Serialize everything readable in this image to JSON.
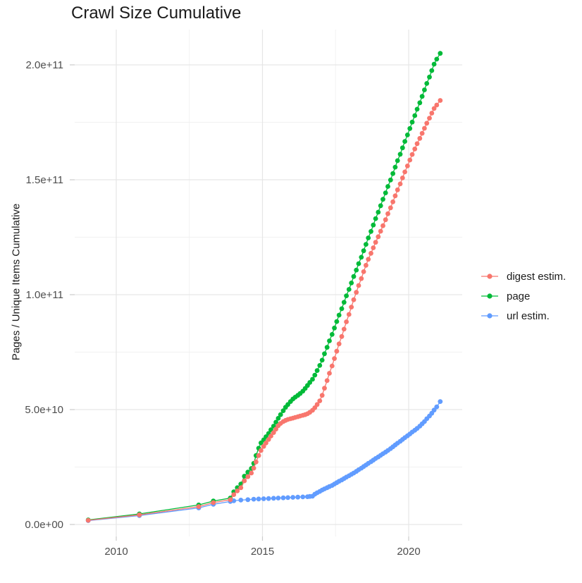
{
  "title": "Crawl Size Cumulative",
  "chart_data": {
    "type": "line",
    "title": "Crawl Size Cumulative",
    "xlabel": "",
    "ylabel": "Pages / Unique Items Cumulative",
    "legend_position": "right",
    "grid": true,
    "background": "#ffffff",
    "grid_major_color": "#e6e6e6",
    "grid_minor_color": "#f1f1f1",
    "tick_color": "#cccccc",
    "tick_label_color": "#4d4d4d",
    "x_ticks": {
      "labels": [
        "2010",
        "2015",
        "2020"
      ],
      "years": [
        2010,
        2015,
        2020
      ]
    },
    "x_minor_years": [
      2012.5,
      2017.5
    ],
    "y_ticks": {
      "labels": [
        "0.0e+00",
        "5.0e+10",
        "1.0e+11",
        "1.5e+11",
        "2.0e+11"
      ],
      "values_e10": [
        0,
        5,
        10,
        15,
        20
      ]
    },
    "y_minor_e10": [
      2.5,
      7.5,
      12.5,
      17.5
    ],
    "xlim": [
      2008.58,
      2021.83
    ],
    "ylim_e10": [
      -0.55,
      21.5
    ],
    "value_unit": "points are [year, value] with value in units of 1e10 pages/items",
    "draw_order": [
      1,
      2,
      0
    ],
    "series": [
      {
        "name": "digest estim.",
        "color": "#F8766D",
        "points": [
          [
            2009.04,
            0.18
          ],
          [
            2010.79,
            0.42
          ],
          [
            2012.82,
            0.78
          ],
          [
            2013.32,
            0.95
          ],
          [
            2013.9,
            1.08
          ],
          [
            2014.02,
            1.3
          ],
          [
            2014.14,
            1.46
          ],
          [
            2014.26,
            1.6
          ],
          [
            2014.38,
            1.9
          ],
          [
            2014.5,
            2.08
          ],
          [
            2014.62,
            2.24
          ],
          [
            2014.7,
            2.45
          ],
          [
            2014.78,
            2.72
          ],
          [
            2014.87,
            3.0
          ],
          [
            2014.95,
            3.22
          ],
          [
            2015.04,
            3.4
          ],
          [
            2015.12,
            3.55
          ],
          [
            2015.21,
            3.7
          ],
          [
            2015.29,
            3.85
          ],
          [
            2015.38,
            4.0
          ],
          [
            2015.46,
            4.15
          ],
          [
            2015.54,
            4.3
          ],
          [
            2015.62,
            4.4
          ],
          [
            2015.71,
            4.48
          ],
          [
            2015.79,
            4.53
          ],
          [
            2015.87,
            4.57
          ],
          [
            2015.96,
            4.6
          ],
          [
            2016.04,
            4.63
          ],
          [
            2016.12,
            4.66
          ],
          [
            2016.21,
            4.69
          ],
          [
            2016.29,
            4.72
          ],
          [
            2016.38,
            4.75
          ],
          [
            2016.46,
            4.78
          ],
          [
            2016.54,
            4.82
          ],
          [
            2016.62,
            4.88
          ],
          [
            2016.71,
            4.97
          ],
          [
            2016.79,
            5.08
          ],
          [
            2016.87,
            5.22
          ],
          [
            2016.96,
            5.38
          ],
          [
            2017.04,
            5.62
          ],
          [
            2017.12,
            5.93
          ],
          [
            2017.21,
            6.26
          ],
          [
            2017.29,
            6.58
          ],
          [
            2017.38,
            6.9
          ],
          [
            2017.46,
            7.22
          ],
          [
            2017.54,
            7.54
          ],
          [
            2017.62,
            7.86
          ],
          [
            2017.71,
            8.18
          ],
          [
            2017.79,
            8.5
          ],
          [
            2017.87,
            8.82
          ],
          [
            2017.96,
            9.14
          ],
          [
            2018.04,
            9.46
          ],
          [
            2018.12,
            9.78
          ],
          [
            2018.21,
            10.1
          ],
          [
            2018.29,
            10.4
          ],
          [
            2018.38,
            10.7
          ],
          [
            2018.46,
            11.0
          ],
          [
            2018.54,
            11.28
          ],
          [
            2018.62,
            11.54
          ],
          [
            2018.71,
            11.8
          ],
          [
            2018.79,
            12.04
          ],
          [
            2018.87,
            12.28
          ],
          [
            2018.96,
            12.52
          ],
          [
            2019.04,
            12.76
          ],
          [
            2019.12,
            13.0
          ],
          [
            2019.21,
            13.26
          ],
          [
            2019.29,
            13.52
          ],
          [
            2019.38,
            13.78
          ],
          [
            2019.46,
            14.04
          ],
          [
            2019.54,
            14.3
          ],
          [
            2019.62,
            14.56
          ],
          [
            2019.71,
            14.82
          ],
          [
            2019.79,
            15.08
          ],
          [
            2019.87,
            15.34
          ],
          [
            2019.96,
            15.6
          ],
          [
            2020.04,
            15.86
          ],
          [
            2020.12,
            16.1
          ],
          [
            2020.21,
            16.34
          ],
          [
            2020.29,
            16.57
          ],
          [
            2020.38,
            16.8
          ],
          [
            2020.46,
            17.02
          ],
          [
            2020.54,
            17.24
          ],
          [
            2020.62,
            17.46
          ],
          [
            2020.71,
            17.68
          ],
          [
            2020.79,
            17.9
          ],
          [
            2020.87,
            18.1
          ],
          [
            2020.96,
            18.25
          ],
          [
            2021.08,
            18.45
          ]
        ]
      },
      {
        "name": "page",
        "color": "#00BA38",
        "points": [
          [
            2009.04,
            0.2
          ],
          [
            2010.79,
            0.46
          ],
          [
            2012.82,
            0.85
          ],
          [
            2013.32,
            1.02
          ],
          [
            2013.9,
            1.15
          ],
          [
            2014.02,
            1.42
          ],
          [
            2014.14,
            1.6
          ],
          [
            2014.26,
            1.76
          ],
          [
            2014.38,
            2.1
          ],
          [
            2014.5,
            2.28
          ],
          [
            2014.62,
            2.44
          ],
          [
            2014.7,
            2.66
          ],
          [
            2014.78,
            3.0
          ],
          [
            2014.87,
            3.32
          ],
          [
            2014.95,
            3.55
          ],
          [
            2015.04,
            3.68
          ],
          [
            2015.12,
            3.82
          ],
          [
            2015.21,
            3.96
          ],
          [
            2015.29,
            4.12
          ],
          [
            2015.38,
            4.28
          ],
          [
            2015.46,
            4.45
          ],
          [
            2015.54,
            4.62
          ],
          [
            2015.62,
            4.78
          ],
          [
            2015.71,
            4.95
          ],
          [
            2015.79,
            5.1
          ],
          [
            2015.87,
            5.22
          ],
          [
            2015.96,
            5.35
          ],
          [
            2016.04,
            5.46
          ],
          [
            2016.12,
            5.54
          ],
          [
            2016.21,
            5.62
          ],
          [
            2016.29,
            5.7
          ],
          [
            2016.38,
            5.8
          ],
          [
            2016.46,
            5.92
          ],
          [
            2016.54,
            6.05
          ],
          [
            2016.62,
            6.18
          ],
          [
            2016.71,
            6.32
          ],
          [
            2016.79,
            6.5
          ],
          [
            2016.87,
            6.7
          ],
          [
            2016.96,
            6.92
          ],
          [
            2017.04,
            7.15
          ],
          [
            2017.12,
            7.43
          ],
          [
            2017.21,
            7.71
          ],
          [
            2017.29,
            7.99
          ],
          [
            2017.38,
            8.27
          ],
          [
            2017.46,
            8.55
          ],
          [
            2017.54,
            8.83
          ],
          [
            2017.62,
            9.11
          ],
          [
            2017.71,
            9.39
          ],
          [
            2017.79,
            9.67
          ],
          [
            2017.87,
            9.95
          ],
          [
            2017.96,
            10.23
          ],
          [
            2018.04,
            10.51
          ],
          [
            2018.12,
            10.79
          ],
          [
            2018.21,
            11.07
          ],
          [
            2018.29,
            11.35
          ],
          [
            2018.38,
            11.63
          ],
          [
            2018.46,
            11.91
          ],
          [
            2018.54,
            12.19
          ],
          [
            2018.62,
            12.47
          ],
          [
            2018.71,
            12.75
          ],
          [
            2018.79,
            13.03
          ],
          [
            2018.87,
            13.31
          ],
          [
            2018.96,
            13.59
          ],
          [
            2019.04,
            13.87
          ],
          [
            2019.12,
            14.15
          ],
          [
            2019.21,
            14.43
          ],
          [
            2019.29,
            14.71
          ],
          [
            2019.38,
            14.99
          ],
          [
            2019.46,
            15.27
          ],
          [
            2019.54,
            15.55
          ],
          [
            2019.62,
            15.83
          ],
          [
            2019.71,
            16.11
          ],
          [
            2019.79,
            16.39
          ],
          [
            2019.87,
            16.67
          ],
          [
            2019.96,
            16.95
          ],
          [
            2020.04,
            17.23
          ],
          [
            2020.12,
            17.51
          ],
          [
            2020.21,
            17.79
          ],
          [
            2020.29,
            18.07
          ],
          [
            2020.38,
            18.35
          ],
          [
            2020.46,
            18.63
          ],
          [
            2020.54,
            18.91
          ],
          [
            2020.62,
            19.19
          ],
          [
            2020.71,
            19.47
          ],
          [
            2020.79,
            19.75
          ],
          [
            2020.87,
            20.03
          ],
          [
            2020.96,
            20.25
          ],
          [
            2021.08,
            20.5
          ]
        ]
      },
      {
        "name": "url estim.",
        "color": "#619CFF",
        "points": [
          [
            2009.04,
            0.17
          ],
          [
            2010.79,
            0.39
          ],
          [
            2012.82,
            0.72
          ],
          [
            2013.32,
            0.88
          ],
          [
            2013.9,
            1.0
          ],
          [
            2014.02,
            1.03
          ],
          [
            2014.26,
            1.06
          ],
          [
            2014.5,
            1.08
          ],
          [
            2014.7,
            1.1
          ],
          [
            2014.87,
            1.11
          ],
          [
            2015.04,
            1.12
          ],
          [
            2015.21,
            1.13
          ],
          [
            2015.38,
            1.14
          ],
          [
            2015.54,
            1.15
          ],
          [
            2015.71,
            1.16
          ],
          [
            2015.87,
            1.17
          ],
          [
            2016.04,
            1.18
          ],
          [
            2016.21,
            1.19
          ],
          [
            2016.38,
            1.2
          ],
          [
            2016.54,
            1.21
          ],
          [
            2016.62,
            1.22
          ],
          [
            2016.71,
            1.23
          ],
          [
            2016.79,
            1.32
          ],
          [
            2016.87,
            1.38
          ],
          [
            2016.96,
            1.44
          ],
          [
            2017.04,
            1.5
          ],
          [
            2017.12,
            1.55
          ],
          [
            2017.21,
            1.6
          ],
          [
            2017.29,
            1.65
          ],
          [
            2017.38,
            1.7
          ],
          [
            2017.46,
            1.76
          ],
          [
            2017.54,
            1.82
          ],
          [
            2017.62,
            1.88
          ],
          [
            2017.71,
            1.94
          ],
          [
            2017.79,
            2.0
          ],
          [
            2017.87,
            2.06
          ],
          [
            2017.96,
            2.12
          ],
          [
            2018.04,
            2.18
          ],
          [
            2018.12,
            2.24
          ],
          [
            2018.21,
            2.31
          ],
          [
            2018.29,
            2.38
          ],
          [
            2018.38,
            2.45
          ],
          [
            2018.46,
            2.52
          ],
          [
            2018.54,
            2.59
          ],
          [
            2018.62,
            2.66
          ],
          [
            2018.71,
            2.73
          ],
          [
            2018.79,
            2.8
          ],
          [
            2018.87,
            2.87
          ],
          [
            2018.96,
            2.94
          ],
          [
            2019.04,
            3.01
          ],
          [
            2019.12,
            3.08
          ],
          [
            2019.21,
            3.15
          ],
          [
            2019.29,
            3.22
          ],
          [
            2019.38,
            3.3
          ],
          [
            2019.46,
            3.38
          ],
          [
            2019.54,
            3.46
          ],
          [
            2019.62,
            3.54
          ],
          [
            2019.71,
            3.62
          ],
          [
            2019.79,
            3.7
          ],
          [
            2019.87,
            3.78
          ],
          [
            2019.96,
            3.86
          ],
          [
            2020.04,
            3.94
          ],
          [
            2020.12,
            4.02
          ],
          [
            2020.21,
            4.1
          ],
          [
            2020.29,
            4.18
          ],
          [
            2020.38,
            4.28
          ],
          [
            2020.46,
            4.38
          ],
          [
            2020.54,
            4.48
          ],
          [
            2020.62,
            4.6
          ],
          [
            2020.71,
            4.72
          ],
          [
            2020.79,
            4.84
          ],
          [
            2020.87,
            4.98
          ],
          [
            2020.96,
            5.12
          ],
          [
            2021.08,
            5.35
          ]
        ]
      }
    ]
  }
}
